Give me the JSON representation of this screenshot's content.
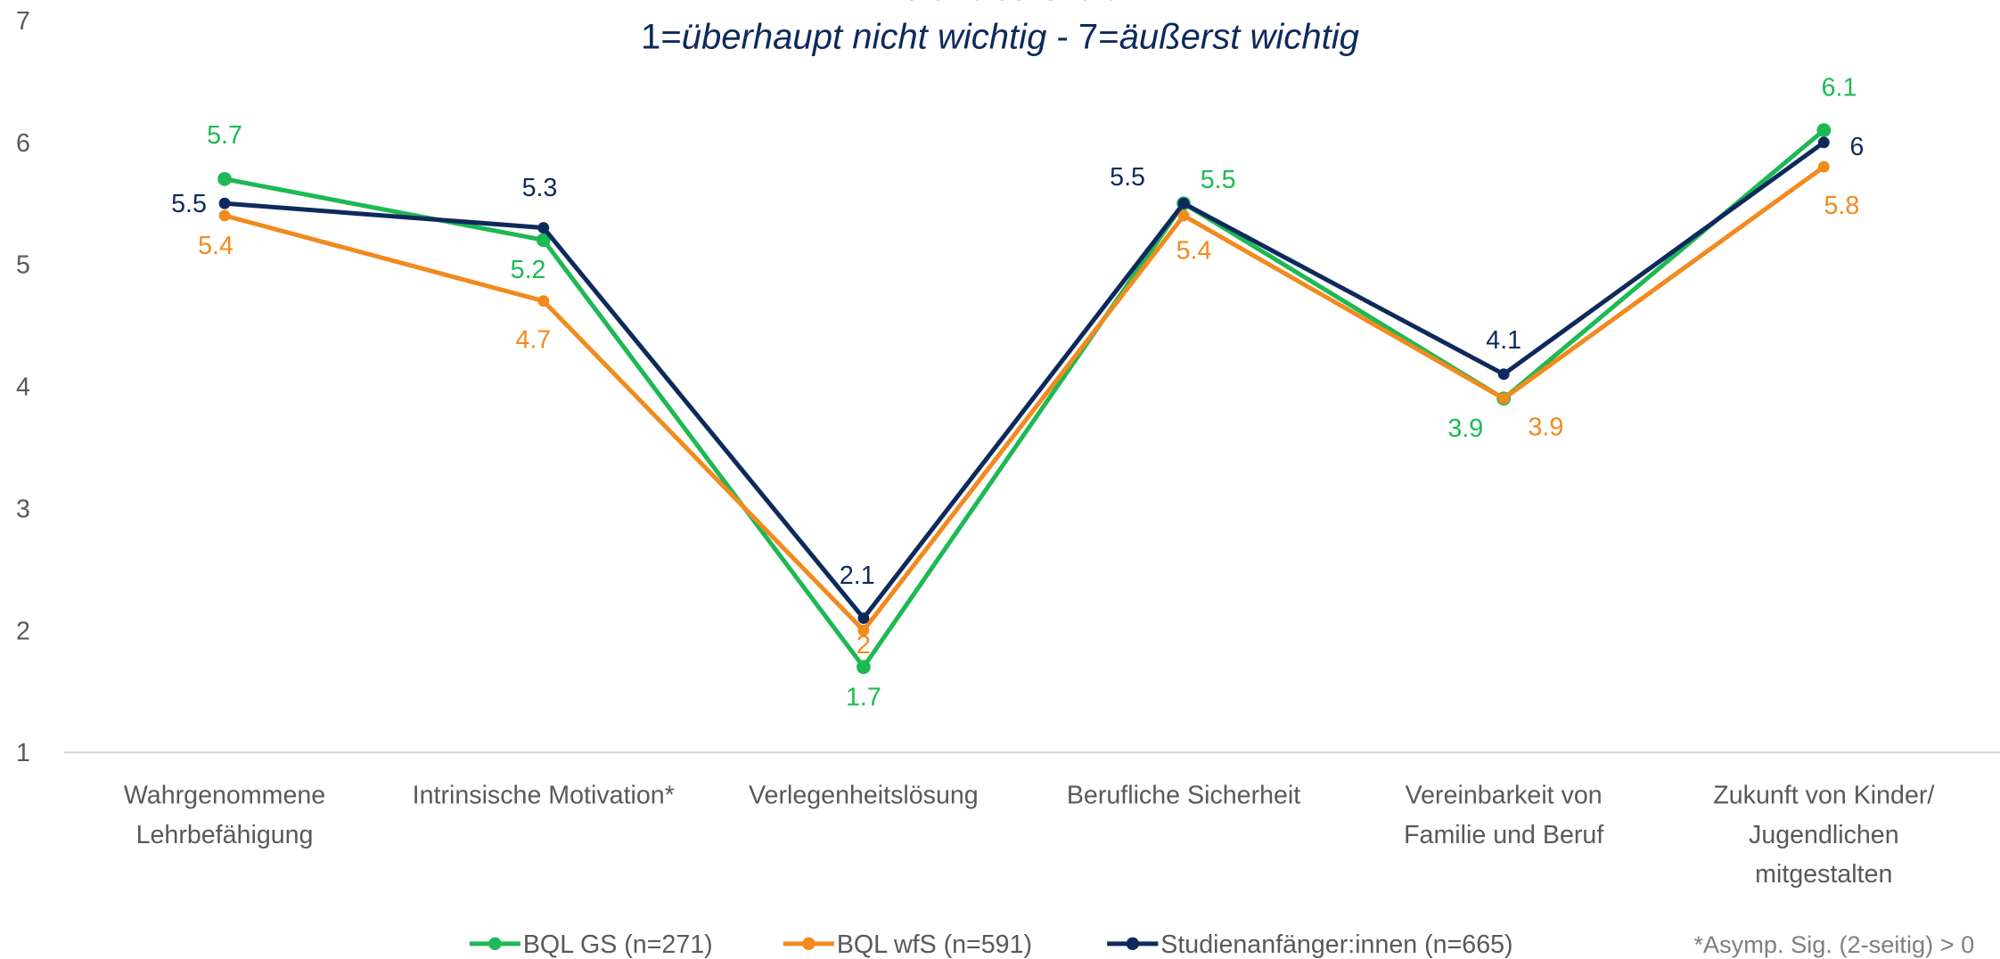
{
  "chart_data": {
    "type": "line",
    "title": "Fit-Choice-Skala",
    "subtitle": [
      "1=",
      "überhaupt nicht wichtig",
      " - 7=",
      "äußerst wichtig"
    ],
    "categories": [
      [
        "Wahrgenommene",
        "Lehrbefähigung"
      ],
      [
        "Intrinsische Motivation*"
      ],
      [
        "Verlegenheitslösung"
      ],
      [
        "Berufliche Sicherheit"
      ],
      [
        "Vereinbarkeit von",
        "Familie und Beruf"
      ],
      [
        "Zukunft von Kinder/",
        "Jugendlichen",
        "mitgestalten"
      ]
    ],
    "series": [
      {
        "name": "BQL GS (n=271)",
        "color": "#1db954",
        "values": [
          5.7,
          5.2,
          1.7,
          5.5,
          3.9,
          6.1
        ]
      },
      {
        "name": "BQL wfS (n=591)",
        "color": "#f28a1e",
        "values": [
          5.4,
          4.7,
          2,
          5.4,
          3.9,
          5.8
        ]
      },
      {
        "name": "Studienanfänger:innen (n=665)",
        "color": "#0e2a5c",
        "values": [
          5.5,
          5.3,
          2.1,
          5.5,
          4.1,
          6
        ]
      }
    ],
    "ylim": [
      1,
      7
    ],
    "yticks": [
      1,
      2,
      3,
      4,
      5,
      6,
      7
    ],
    "grid": false,
    "legend": "bottom",
    "footnote": "*Asymp. Sig. (2-seitig) > 0"
  }
}
